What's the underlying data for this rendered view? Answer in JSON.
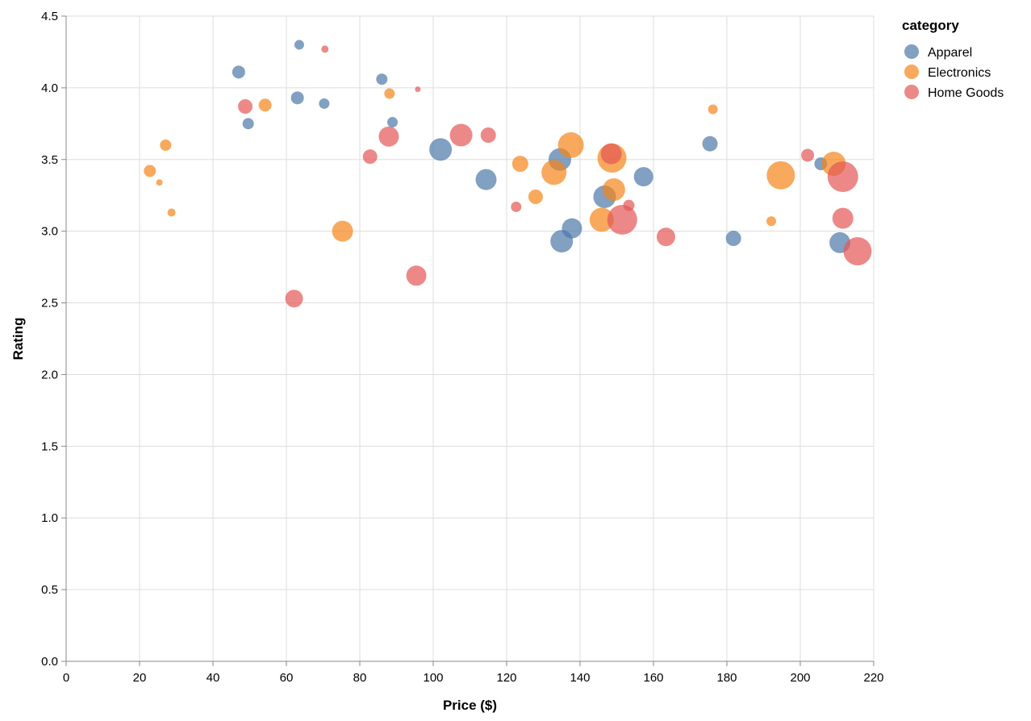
{
  "chart_data": {
    "type": "scatter",
    "title": "",
    "xlabel": "Price ($)",
    "ylabel": "Rating",
    "xlim": [
      0,
      220
    ],
    "ylim": [
      0,
      4.5
    ],
    "x_ticks": [
      "0",
      "20",
      "40",
      "60",
      "80",
      "100",
      "120",
      "140",
      "160",
      "180",
      "200",
      "220"
    ],
    "y_ticks": [
      "0.0",
      "0.5",
      "1.0",
      "1.5",
      "2.0",
      "2.5",
      "3.0",
      "3.5",
      "4.0",
      "4.5"
    ],
    "grid": true,
    "legend": {
      "title": "category",
      "placement": "top-right",
      "entries": [
        {
          "label": "Apparel",
          "color": "#4c78a8"
        },
        {
          "label": "Electronics",
          "color": "#f58518"
        },
        {
          "label": "Home Goods",
          "color": "#e45756"
        }
      ]
    },
    "series": [
      {
        "name": "Apparel",
        "color": "#4c78a8",
        "points": [
          {
            "x": 47.0,
            "y": 4.11,
            "r": 8
          },
          {
            "x": 49.6,
            "y": 3.75,
            "r": 7
          },
          {
            "x": 63.0,
            "y": 3.93,
            "r": 8
          },
          {
            "x": 63.5,
            "y": 4.3,
            "r": 6
          },
          {
            "x": 70.3,
            "y": 3.89,
            "r": 6.5
          },
          {
            "x": 86.0,
            "y": 4.06,
            "r": 7
          },
          {
            "x": 88.9,
            "y": 3.76,
            "r": 6.5
          },
          {
            "x": 102.0,
            "y": 3.57,
            "r": 14
          },
          {
            "x": 114.4,
            "y": 3.36,
            "r": 13
          },
          {
            "x": 134.5,
            "y": 3.5,
            "r": 14
          },
          {
            "x": 135.0,
            "y": 2.93,
            "r": 14
          },
          {
            "x": 137.8,
            "y": 3.02,
            "r": 12.5
          },
          {
            "x": 146.7,
            "y": 3.24,
            "r": 14
          },
          {
            "x": 157.3,
            "y": 3.38,
            "r": 12
          },
          {
            "x": 175.4,
            "y": 3.61,
            "r": 9.5
          },
          {
            "x": 181.8,
            "y": 2.95,
            "r": 9.5
          },
          {
            "x": 205.6,
            "y": 3.47,
            "r": 8
          },
          {
            "x": 210.8,
            "y": 2.92,
            "r": 13
          }
        ]
      },
      {
        "name": "Electronics",
        "color": "#f58518",
        "points": [
          {
            "x": 22.8,
            "y": 3.42,
            "r": 7.5
          },
          {
            "x": 25.4,
            "y": 3.34,
            "r": 4
          },
          {
            "x": 27.1,
            "y": 3.6,
            "r": 7
          },
          {
            "x": 28.7,
            "y": 3.13,
            "r": 5
          },
          {
            "x": 54.2,
            "y": 3.88,
            "r": 8
          },
          {
            "x": 75.3,
            "y": 3.0,
            "r": 13
          },
          {
            "x": 88.1,
            "y": 3.96,
            "r": 6.5
          },
          {
            "x": 123.7,
            "y": 3.47,
            "r": 10
          },
          {
            "x": 127.9,
            "y": 3.24,
            "r": 9
          },
          {
            "x": 132.9,
            "y": 3.41,
            "r": 15.5
          },
          {
            "x": 137.5,
            "y": 3.6,
            "r": 16
          },
          {
            "x": 145.9,
            "y": 3.08,
            "r": 15
          },
          {
            "x": 148.7,
            "y": 3.51,
            "r": 18
          },
          {
            "x": 149.2,
            "y": 3.29,
            "r": 14
          },
          {
            "x": 176.2,
            "y": 3.85,
            "r": 6
          },
          {
            "x": 192.1,
            "y": 3.07,
            "r": 6
          },
          {
            "x": 194.7,
            "y": 3.39,
            "r": 17.5
          },
          {
            "x": 209.1,
            "y": 3.47,
            "r": 15
          }
        ]
      },
      {
        "name": "Home Goods",
        "color": "#e45756",
        "points": [
          {
            "x": 48.8,
            "y": 3.87,
            "r": 9
          },
          {
            "x": 62.1,
            "y": 2.53,
            "r": 11
          },
          {
            "x": 70.5,
            "y": 4.27,
            "r": 4.5
          },
          {
            "x": 82.8,
            "y": 3.52,
            "r": 9
          },
          {
            "x": 87.9,
            "y": 3.66,
            "r": 12.5
          },
          {
            "x": 95.4,
            "y": 2.69,
            "r": 12.5
          },
          {
            "x": 95.8,
            "y": 3.99,
            "r": 3.5
          },
          {
            "x": 107.6,
            "y": 3.67,
            "r": 14
          },
          {
            "x": 115.0,
            "y": 3.67,
            "r": 9.5
          },
          {
            "x": 122.6,
            "y": 3.17,
            "r": 6.5
          },
          {
            "x": 148.5,
            "y": 3.54,
            "r": 13
          },
          {
            "x": 151.5,
            "y": 3.08,
            "r": 18.5
          },
          {
            "x": 153.3,
            "y": 3.18,
            "r": 7
          },
          {
            "x": 163.4,
            "y": 2.96,
            "r": 11.5
          },
          {
            "x": 202.0,
            "y": 3.53,
            "r": 8
          },
          {
            "x": 211.6,
            "y": 3.38,
            "r": 19
          },
          {
            "x": 211.6,
            "y": 3.09,
            "r": 13
          },
          {
            "x": 215.6,
            "y": 2.86,
            "r": 17.5
          }
        ]
      }
    ]
  }
}
